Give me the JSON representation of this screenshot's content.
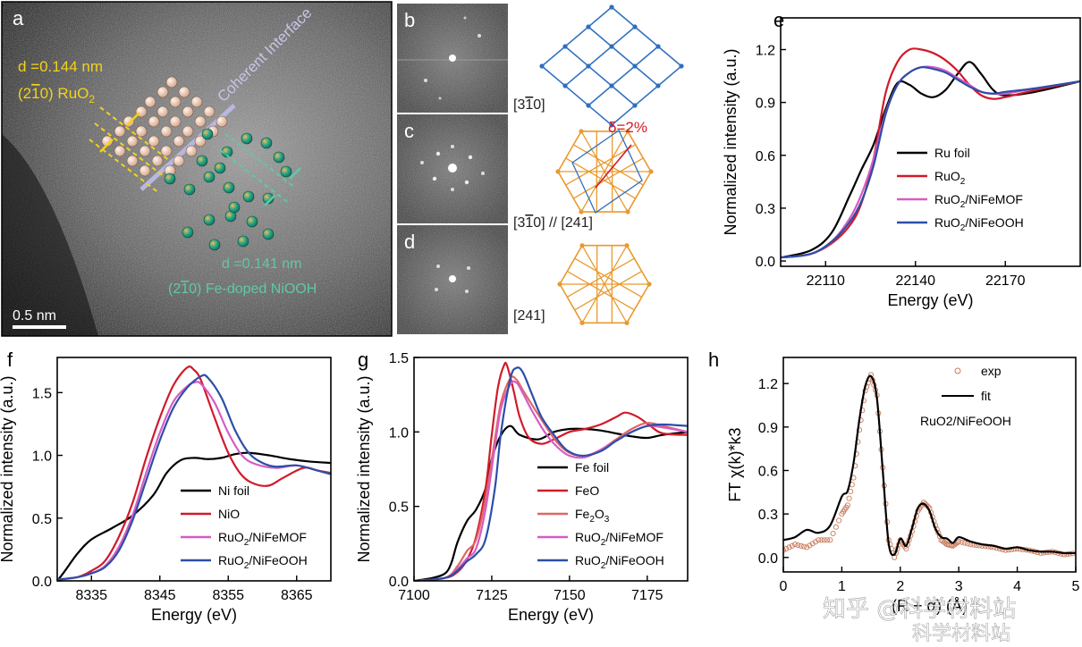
{
  "panels": {
    "a": {
      "label": "a",
      "d1": "d =0.144 nm",
      "plane1_pre": "(2",
      "plane1_bar": "1",
      "plane1_post": "0) RuO",
      "plane1_sub": "2",
      "interface": "Coherent Interface",
      "d2": "d =0.141 nm",
      "plane2_pre": "(2",
      "plane2_bar": "1",
      "plane2_post": "0) Fe-doped NiOOH",
      "scalebar": "0.5 nm"
    },
    "b": {
      "label": "b",
      "zone": "[3",
      "zone_bar": "1",
      "zone_post": "0]"
    },
    "c": {
      "label": "c",
      "zone": "[3",
      "zone_bar": "1",
      "zone_post": "0] // [241]",
      "mismatch": "δ=2%"
    },
    "d": {
      "label": "d",
      "zone": "[241]"
    }
  },
  "colors": {
    "black": "#000000",
    "red": "#d11a2a",
    "pink": "#d65cc5",
    "blue": "#2b4fa8",
    "salmon": "#e06666",
    "exp": "#c87a5a",
    "yellow": "#f2d21b",
    "teal": "#5fc8a9",
    "lattice_blue": "#2e6fbf",
    "lattice_orange": "#e99a2e",
    "mismatch_red": "#d11a2a"
  },
  "watermark": {
    "site": "知乎 @科学材料站",
    "site2": "科学材料站"
  },
  "chart_data": [
    {
      "id": "e",
      "type": "line",
      "label": "e",
      "title": "",
      "xlabel": "Energy (eV)",
      "ylabel": "Normalized intensity (a.u.)",
      "xlim": [
        22095,
        22195
      ],
      "ylim": [
        -0.03,
        1.38
      ],
      "xticks": [
        22110,
        22140,
        22170
      ],
      "yticks": [
        0.0,
        0.3,
        0.6,
        0.9,
        1.2
      ],
      "xtick_labels": [
        "22110",
        "22140",
        "22170"
      ],
      "ytick_labels": [
        "0.0",
        "0.3",
        "0.6",
        "0.9",
        "1.2"
      ],
      "legend": "right",
      "series": [
        {
          "name": "Ru foil",
          "color": "#000000",
          "x": [
            22095,
            22105,
            22112,
            22118,
            22122,
            22126,
            22130,
            22134,
            22138,
            22142,
            22146,
            22150,
            22154,
            22158,
            22162,
            22166,
            22170,
            22180,
            22195
          ],
          "values": [
            0.02,
            0.06,
            0.16,
            0.37,
            0.52,
            0.66,
            0.86,
            1.01,
            1.0,
            0.95,
            0.93,
            0.97,
            1.06,
            1.13,
            1.06,
            0.97,
            0.94,
            0.96,
            1.02
          ]
        },
        {
          "name": "RuO2",
          "color": "#d11a2a",
          "x": [
            22095,
            22105,
            22112,
            22118,
            22122,
            22126,
            22130,
            22134,
            22138,
            22142,
            22146,
            22150,
            22154,
            22158,
            22162,
            22166,
            22170,
            22180,
            22195
          ],
          "values": [
            0.02,
            0.04,
            0.1,
            0.2,
            0.33,
            0.58,
            0.95,
            1.13,
            1.2,
            1.2,
            1.18,
            1.14,
            1.08,
            1.0,
            0.94,
            0.92,
            0.93,
            0.97,
            1.02
          ]
        },
        {
          "name": "RuO2/NiFeMOF",
          "color": "#d65cc5",
          "x": [
            22095,
            22105,
            22112,
            22118,
            22122,
            22126,
            22130,
            22134,
            22138,
            22142,
            22146,
            22150,
            22154,
            22158,
            22162,
            22166,
            22170,
            22180,
            22195
          ],
          "values": [
            0.02,
            0.04,
            0.11,
            0.24,
            0.38,
            0.58,
            0.84,
            1.0,
            1.07,
            1.1,
            1.1,
            1.08,
            1.04,
            1.0,
            0.96,
            0.95,
            0.95,
            0.98,
            1.02
          ]
        },
        {
          "name": "RuO2/NiFeOOH",
          "color": "#2b4fa8",
          "x": [
            22095,
            22105,
            22112,
            22118,
            22122,
            22126,
            22130,
            22134,
            22138,
            22142,
            22146,
            22150,
            22154,
            22158,
            22162,
            22166,
            22170,
            22180,
            22195
          ],
          "values": [
            0.02,
            0.04,
            0.11,
            0.22,
            0.34,
            0.54,
            0.83,
            1.0,
            1.07,
            1.1,
            1.09,
            1.07,
            1.03,
            0.99,
            0.96,
            0.95,
            0.96,
            0.98,
            1.02
          ]
        }
      ],
      "legend_labels": [
        [
          "Ru foil",
          ""
        ],
        [
          "RuO",
          "2",
          ""
        ],
        [
          "RuO",
          "2",
          "/NiFeMOF"
        ],
        [
          "RuO",
          "2",
          "/NiFeOOH"
        ]
      ]
    },
    {
      "id": "f",
      "type": "line",
      "label": "f",
      "title": "",
      "xlabel": "Energy (eV)",
      "ylabel": "Normalized intensity (a.u.)",
      "xlim": [
        8330,
        8370
      ],
      "ylim": [
        0.0,
        1.78
      ],
      "xticks": [
        8335,
        8345,
        8355,
        8365
      ],
      "yticks": [
        0.0,
        0.5,
        1.0,
        1.5
      ],
      "xtick_labels": [
        "8335",
        "8345",
        "8355",
        "8365"
      ],
      "ytick_labels": [
        "0.0",
        "0.5",
        "1.0",
        "1.5"
      ],
      "legend": "bottom-right",
      "series": [
        {
          "name": "Ni foil",
          "color": "#000000",
          "x": [
            8330,
            8331,
            8333,
            8335,
            8338,
            8341,
            8344,
            8346,
            8348,
            8350,
            8352,
            8354,
            8356,
            8358,
            8361,
            8364,
            8367,
            8370
          ],
          "values": [
            0.0,
            0.07,
            0.22,
            0.33,
            0.42,
            0.52,
            0.68,
            0.86,
            0.96,
            0.98,
            0.97,
            0.98,
            1.01,
            1.02,
            1.0,
            0.97,
            0.95,
            0.94
          ]
        },
        {
          "name": "NiO",
          "color": "#d11a2a",
          "x": [
            8330,
            8333,
            8335,
            8337,
            8339,
            8341,
            8343,
            8345,
            8347,
            8349,
            8350,
            8351,
            8353,
            8355,
            8357,
            8359,
            8361,
            8363,
            8366,
            8368,
            8370
          ],
          "values": [
            0.01,
            0.03,
            0.08,
            0.16,
            0.35,
            0.62,
            0.98,
            1.3,
            1.56,
            1.7,
            1.68,
            1.6,
            1.3,
            1.02,
            0.84,
            0.77,
            0.76,
            0.82,
            0.9,
            0.88,
            0.86
          ]
        },
        {
          "name": "RuO2/NiFeMOF",
          "color": "#d65cc5",
          "x": [
            8330,
            8333,
            8335,
            8337,
            8339,
            8341,
            8343,
            8345,
            8347,
            8349,
            8350,
            8351,
            8353,
            8355,
            8357,
            8359,
            8362,
            8365,
            8368,
            8370
          ],
          "values": [
            0.01,
            0.03,
            0.06,
            0.12,
            0.27,
            0.52,
            0.86,
            1.18,
            1.43,
            1.55,
            1.58,
            1.57,
            1.42,
            1.18,
            1.0,
            0.93,
            0.9,
            0.92,
            0.88,
            0.85
          ]
        },
        {
          "name": "RuO2/NiFeOOH",
          "color": "#2b4fa8",
          "x": [
            8330,
            8333,
            8335,
            8337,
            8339,
            8341,
            8343,
            8345,
            8347,
            8349,
            8351,
            8352,
            8354,
            8356,
            8358,
            8360,
            8362,
            8365,
            8368,
            8370
          ],
          "values": [
            0.01,
            0.03,
            0.06,
            0.11,
            0.24,
            0.48,
            0.8,
            1.12,
            1.38,
            1.54,
            1.63,
            1.62,
            1.46,
            1.2,
            1.02,
            0.94,
            0.91,
            0.92,
            0.88,
            0.85
          ]
        }
      ],
      "legend_labels": [
        [
          "Ni foil",
          ""
        ],
        [
          "NiO",
          ""
        ],
        [
          "RuO",
          "2",
          "/NiFeMOF"
        ],
        [
          "RuO",
          "2",
          "/NiFeOOH"
        ]
      ]
    },
    {
      "id": "g",
      "type": "line",
      "label": "g",
      "title": "",
      "xlabel": "Energy (eV)",
      "ylabel": "Normalized intensity (a.u.)",
      "xlim": [
        7100,
        7188
      ],
      "ylim": [
        0.0,
        1.5
      ],
      "xticks": [
        7100,
        7125,
        7150,
        7175
      ],
      "yticks": [
        0.0,
        0.5,
        1.0,
        1.5
      ],
      "xtick_labels": [
        "7100",
        "7125",
        "7150",
        "7175"
      ],
      "ytick_labels": [
        "0.0",
        "0.5",
        "1.0",
        "1.5"
      ],
      "legend": "bottom-right",
      "series": [
        {
          "name": "Fe foil",
          "color": "#000000",
          "x": [
            7100,
            7106,
            7110,
            7112,
            7114,
            7117,
            7120,
            7123,
            7125,
            7128,
            7131,
            7134,
            7140,
            7145,
            7150,
            7155,
            7160,
            7165,
            7170,
            7175,
            7180,
            7188
          ],
          "values": [
            0.0,
            0.02,
            0.05,
            0.12,
            0.26,
            0.4,
            0.48,
            0.62,
            0.82,
            0.98,
            1.04,
            0.98,
            0.95,
            1.0,
            1.02,
            1.02,
            1.01,
            0.99,
            0.97,
            0.96,
            0.98,
            1.0
          ]
        },
        {
          "name": "FeO",
          "color": "#d11a2a",
          "x": [
            7100,
            7110,
            7114,
            7117,
            7120,
            7123,
            7125,
            7127,
            7129,
            7130,
            7132,
            7134,
            7137,
            7141,
            7145,
            7150,
            7155,
            7160,
            7165,
            7168,
            7172,
            7176,
            7180,
            7188
          ],
          "values": [
            0.0,
            0.02,
            0.06,
            0.14,
            0.3,
            0.62,
            0.98,
            1.3,
            1.45,
            1.44,
            1.28,
            1.1,
            0.96,
            0.92,
            0.95,
            1.0,
            1.02,
            1.05,
            1.1,
            1.13,
            1.1,
            1.04,
            0.99,
            0.98
          ]
        },
        {
          "name": "Fe2O3",
          "color": "#e06666",
          "x": [
            7100,
            7110,
            7114,
            7117,
            7120,
            7123,
            7126,
            7128,
            7131,
            7133,
            7135,
            7138,
            7142,
            7146,
            7150,
            7155,
            7160,
            7165,
            7170,
            7175,
            7180,
            7188
          ],
          "values": [
            0.0,
            0.02,
            0.1,
            0.2,
            0.28,
            0.55,
            0.95,
            1.2,
            1.36,
            1.35,
            1.28,
            1.18,
            1.05,
            0.93,
            0.86,
            0.84,
            0.88,
            0.95,
            1.02,
            1.06,
            1.04,
            1.0
          ]
        },
        {
          "name": "RuO2/NiFeMOF",
          "color": "#d65cc5",
          "x": [
            7100,
            7110,
            7114,
            7117,
            7120,
            7123,
            7126,
            7128,
            7131,
            7133,
            7135,
            7138,
            7142,
            7146,
            7150,
            7155,
            7160,
            7165,
            7170,
            7175,
            7180,
            7188
          ],
          "values": [
            0.0,
            0.02,
            0.08,
            0.15,
            0.22,
            0.48,
            0.9,
            1.16,
            1.32,
            1.33,
            1.26,
            1.14,
            1.0,
            0.9,
            0.84,
            0.83,
            0.88,
            0.94,
            1.0,
            1.04,
            1.03,
            1.0
          ]
        },
        {
          "name": "RuO2/NiFeOOH",
          "color": "#2b4fa8",
          "x": [
            7100,
            7110,
            7114,
            7117,
            7120,
            7123,
            7126,
            7128,
            7131,
            7133,
            7135,
            7138,
            7141,
            7145,
            7149,
            7154,
            7160,
            7165,
            7170,
            7175,
            7180,
            7188
          ],
          "values": [
            0.0,
            0.02,
            0.07,
            0.13,
            0.18,
            0.28,
            0.62,
            1.0,
            1.36,
            1.43,
            1.4,
            1.25,
            1.1,
            0.98,
            0.88,
            0.84,
            0.87,
            0.94,
            1.0,
            1.04,
            1.05,
            1.04
          ]
        }
      ],
      "legend_labels": [
        [
          "Fe foil",
          ""
        ],
        [
          "FeO",
          ""
        ],
        [
          "Fe",
          "2",
          "O",
          "3",
          ""
        ],
        [
          "RuO",
          "2",
          "/NiFeMOF"
        ],
        [
          "RuO",
          "2",
          "/NiFeOOH"
        ]
      ]
    },
    {
      "id": "h",
      "type": "scatter+line",
      "label": "h",
      "title": "RuO2/NiFeOOH",
      "xlabel": "(R + α) (Å)",
      "ylabel": "FT χ(k)*k3",
      "xlim": [
        0,
        5
      ],
      "ylim": [
        -0.1,
        1.38
      ],
      "xticks": [
        0,
        1,
        2,
        3,
        4,
        5
      ],
      "yticks": [
        0.0,
        0.3,
        0.6,
        0.9,
        1.2
      ],
      "xtick_labels": [
        "0",
        "1",
        "2",
        "3",
        "4",
        "5"
      ],
      "ytick_labels": [
        "0.0",
        "0.3",
        "0.6",
        "0.9",
        "1.2"
      ],
      "legend": "top-right",
      "series": [
        {
          "name": "exp",
          "color": "#c87a5a",
          "style": "open-circle",
          "x": [
            0.0,
            0.2,
            0.4,
            0.6,
            0.8,
            1.0,
            1.1,
            1.2,
            1.3,
            1.4,
            1.5,
            1.6,
            1.7,
            1.8,
            1.9,
            2.0,
            2.1,
            2.2,
            2.3,
            2.4,
            2.5,
            2.6,
            2.7,
            2.8,
            2.9,
            3.0,
            3.2,
            3.4,
            3.6,
            3.8,
            4.0,
            4.2,
            4.4,
            4.6,
            4.8,
            5.0
          ],
          "values": [
            0.05,
            0.09,
            0.07,
            0.12,
            0.12,
            0.3,
            0.36,
            0.55,
            0.88,
            1.15,
            1.26,
            1.12,
            0.62,
            0.12,
            0.0,
            0.12,
            0.06,
            0.18,
            0.32,
            0.38,
            0.34,
            0.22,
            0.12,
            0.09,
            0.08,
            0.11,
            0.09,
            0.08,
            0.07,
            0.05,
            0.06,
            0.05,
            0.03,
            0.04,
            0.02,
            0.03
          ]
        },
        {
          "name": "fit",
          "color": "#000000",
          "style": "line",
          "x": [
            0.0,
            0.2,
            0.4,
            0.6,
            0.8,
            1.0,
            1.1,
            1.2,
            1.3,
            1.4,
            1.5,
            1.6,
            1.7,
            1.8,
            1.9,
            2.0,
            2.1,
            2.2,
            2.3,
            2.4,
            2.5,
            2.6,
            2.7,
            2.8,
            2.9,
            3.0,
            3.2,
            3.4,
            3.6,
            3.8,
            4.0,
            4.2,
            4.4,
            4.6,
            4.8,
            5.0
          ],
          "values": [
            0.12,
            0.14,
            0.19,
            0.17,
            0.22,
            0.42,
            0.46,
            0.65,
            0.95,
            1.18,
            1.25,
            1.1,
            0.6,
            0.1,
            0.02,
            0.13,
            0.08,
            0.2,
            0.34,
            0.37,
            0.32,
            0.2,
            0.14,
            0.13,
            0.1,
            0.14,
            0.11,
            0.09,
            0.08,
            0.06,
            0.07,
            0.05,
            0.04,
            0.04,
            0.03,
            0.03
          ]
        }
      ],
      "legend_labels": [
        [
          "exp"
        ],
        [
          "fit"
        ]
      ]
    }
  ]
}
